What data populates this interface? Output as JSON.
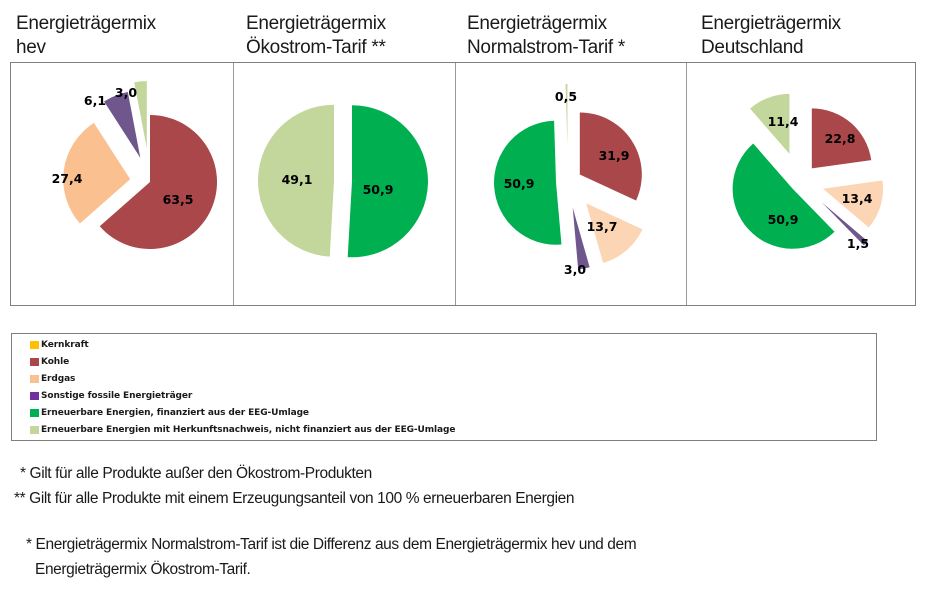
{
  "legend": {
    "items": [
      {
        "key": "kernkraft",
        "label": "Kernkraft",
        "color": "#FFC000"
      },
      {
        "key": "kohle",
        "label": "Kohle",
        "color": "#A9474A"
      },
      {
        "key": "erdgas",
        "label": "Erdgas",
        "color": "#FAC090"
      },
      {
        "key": "sonstige",
        "label": "Sonstige fossile Energieträger",
        "color": "#7030A0"
      },
      {
        "key": "ee_eeg",
        "label": "Erneuerbare Energien, finanziert aus der EEG-Umlage",
        "color": "#00B050"
      },
      {
        "key": "ee_hkn",
        "label": "Erneuerbare Energien mit Herkunftsnachweis, nicht finanziert aus der EEG-Umlage",
        "color": "#C3D69B"
      }
    ]
  },
  "chart_data": [
    {
      "type": "pie",
      "title_line1": "Energieträgermix",
      "title_line2": "hev",
      "slices": [
        {
          "category": "Kohle",
          "value": 63.5,
          "label": "63,5",
          "color": "#A9474A"
        },
        {
          "category": "Erdgas",
          "value": 27.4,
          "label": "27,4",
          "color": "#FAC090"
        },
        {
          "category": "Sonstige fossile Energieträger",
          "value": 6.1,
          "label": "6,1",
          "color": "#6F578D"
        },
        {
          "category": "Erneuerbare Energien mit Herkunftsnachweis, nicht finanziert aus der EEG-Umlage",
          "value": 3.0,
          "label": "3,0",
          "color": "#C3D69B"
        }
      ]
    },
    {
      "type": "pie",
      "title_line1": "Energieträgermix",
      "title_line2": "Ökostrom-Tarif **",
      "slices": [
        {
          "category": "Erneuerbare Energien, finanziert aus der EEG-Umlage",
          "value": 50.9,
          "label": "50,9",
          "color": "#00B050"
        },
        {
          "category": "Erneuerbare Energien mit Herkunftsnachweis, nicht finanziert aus der EEG-Umlage",
          "value": 49.1,
          "label": "49,1",
          "color": "#C3D69B"
        }
      ]
    },
    {
      "type": "pie",
      "title_line1": "Energieträgermix",
      "title_line2": "Normalstrom-Tarif *",
      "slices": [
        {
          "category": "Kohle",
          "value": 31.9,
          "label": "31,9",
          "color": "#A9474A"
        },
        {
          "category": "Erdgas",
          "value": 13.7,
          "label": "13,7",
          "color": "#FCD5B5"
        },
        {
          "category": "Sonstige fossile Energieträger",
          "value": 3.0,
          "label": "3,0",
          "color": "#6F578D"
        },
        {
          "category": "Erneuerbare Energien, finanziert aus der EEG-Umlage",
          "value": 50.9,
          "label": "50,9",
          "color": "#00B050"
        },
        {
          "category": "Erneuerbare Energien mit Herkunftsnachweis, nicht finanziert aus der EEG-Umlage",
          "value": 0.5,
          "label": "0,5",
          "color": "#C3D69B"
        }
      ]
    },
    {
      "type": "pie",
      "title_line1": "Energieträgermix",
      "title_line2": "Deutschland",
      "slices": [
        {
          "category": "Kohle",
          "value": 22.8,
          "label": "22,8",
          "color": "#A9474A"
        },
        {
          "category": "Erdgas",
          "value": 13.4,
          "label": "13,4",
          "color": "#FCD5B5"
        },
        {
          "category": "Sonstige fossile Energieträger",
          "value": 1.5,
          "label": "1,5",
          "color": "#6F578D"
        },
        {
          "category": "Erneuerbare Energien, finanziert aus der EEG-Umlage",
          "value": 50.9,
          "label": "50,9",
          "color": "#00B050"
        },
        {
          "category": "Erneuerbare Energien mit Herkunftsnachweis, nicht finanziert aus der EEG-Umlage",
          "value": 11.4,
          "label": "11,4",
          "color": "#C3D69B"
        }
      ]
    }
  ],
  "footnotes": {
    "note1": "* Gilt für alle Produkte außer den Ökostrom-Produkten",
    "note2": "** Gilt für alle Produkte mit einem Erzeugungsanteil von 100 % erneuerbaren Energien",
    "note3_line1": "* Energieträgermix Normalstrom-Tarif ist die Differenz aus dem Energieträgermix hev und dem",
    "note3_line2": "Energieträgermix Ökostrom-Tarif."
  }
}
